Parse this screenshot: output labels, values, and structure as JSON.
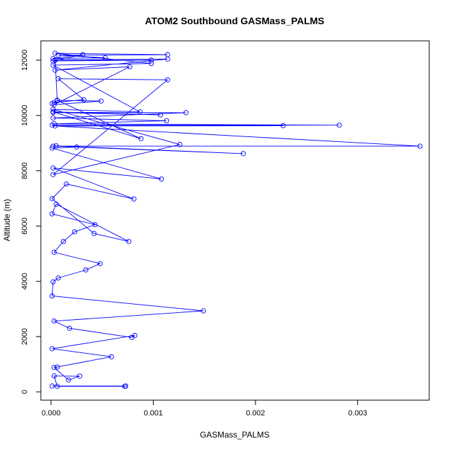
{
  "chart_data": {
    "type": "line",
    "title": "ATOM2 Southbound GASMass_PALMS",
    "xlabel": "GASMass_PALMS",
    "ylabel": "Altitude (m)",
    "xlim": [
      -0.0001,
      0.0037
    ],
    "ylim": [
      -300,
      12700
    ],
    "x_ticks": [
      0.0,
      0.001,
      0.002,
      0.003
    ],
    "x_tick_labels": [
      "0.000",
      "0.001",
      "0.002",
      "0.003"
    ],
    "y_ticks": [
      0,
      2000,
      4000,
      6000,
      8000,
      10000,
      12000
    ],
    "y_tick_labels": [
      "0",
      "2000",
      "4000",
      "6000",
      "8000",
      "10000",
      "12000"
    ],
    "grid": false,
    "series": [
      {
        "color": "#0000ff",
        "marker": "open-circle",
        "x": [
          1e-05,
          0.00073,
          0.00072,
          6e-05,
          3e-05,
          0.00028,
          0.00017,
          3e-05,
          6e-05,
          0.00059,
          1e-05,
          0.00082,
          0.00079,
          0.00018,
          3e-05,
          0.00149,
          1e-05,
          2e-05,
          7e-05,
          0.00034,
          0.00048,
          3e-05,
          0.00012,
          0.00023,
          0.00043,
          1e-05,
          5e-05,
          0.00076,
          0.00042,
          1e-05,
          0.00015,
          0.00081,
          2e-05,
          0.00108,
          1e-05,
          0.00025,
          5e-05,
          0.00188,
          2e-05,
          0.00361,
          4e-05,
          0.00227,
          1e-05,
          0.00282,
          3e-05,
          0.00113,
          2e-05,
          0.00132,
          2e-05,
          0.00107,
          2e-05,
          0.00088,
          6e-05,
          0.00049,
          3e-05,
          0.00077,
          4e-05,
          0.00114,
          4e-05,
          0.00098,
          2e-05,
          0.00031,
          2e-05,
          0.00053,
          7e-05,
          0.00114,
          4e-05,
          0.00098,
          2e-05,
          0.00087,
          2e-05,
          0.00126,
          2e-05,
          0.00114,
          7e-05,
          0.00032,
          3e-05,
          1e-05,
          6e-05,
          4e-05
        ],
        "y": [
          210,
          210,
          200,
          200,
          580,
          570,
          430,
          880,
          900,
          1270,
          1560,
          2040,
          1970,
          2300,
          2560,
          2930,
          3470,
          3980,
          4120,
          4410,
          4640,
          5050,
          5440,
          5790,
          6050,
          6440,
          6790,
          5440,
          5730,
          6990,
          7520,
          6980,
          8100,
          7700,
          8820,
          8860,
          8900,
          8620,
          8890,
          8890,
          9620,
          9630,
          9650,
          9650,
          9700,
          9810,
          9910,
          10100,
          10110,
          10020,
          10130,
          9160,
          10550,
          10520,
          10390,
          11760,
          11640,
          12040,
          12010,
          12000,
          11970,
          12200,
          12060,
          12090,
          12180,
          12200,
          12250,
          11880,
          11820,
          10130,
          10220,
          8950,
          7860,
          11290,
          11330,
          10570,
          10470,
          10430,
          10540,
          12000
        ]
      }
    ]
  }
}
